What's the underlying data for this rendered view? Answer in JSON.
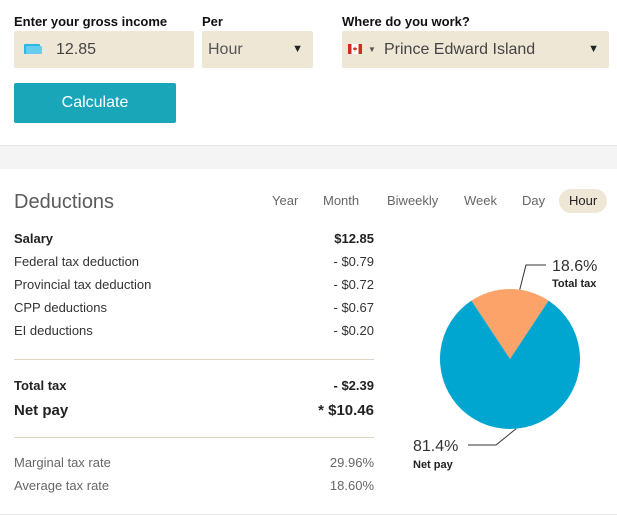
{
  "form": {
    "income_label": "Enter your gross income",
    "income_value": "12.85",
    "per_label": "Per",
    "per_value": "Hour",
    "where_label": "Where do you work?",
    "where_value": "Prince Edward Island",
    "calculate_label": "Calculate"
  },
  "deductions": {
    "title": "Deductions",
    "periods": [
      "Year",
      "Month",
      "Biweekly",
      "Week",
      "Day",
      "Hour"
    ],
    "active_period": "Hour",
    "salary": {
      "label": "Salary",
      "value": "$12.85"
    },
    "items": [
      {
        "label": "Federal tax deduction",
        "value": "- $0.79"
      },
      {
        "label": "Provincial tax deduction",
        "value": "- $0.72"
      },
      {
        "label": "CPP deductions",
        "value": "- $0.67"
      },
      {
        "label": "EI deductions",
        "value": "- $0.20"
      }
    ],
    "total_tax": {
      "label": "Total tax",
      "value": "- $2.39"
    },
    "net_pay": {
      "label": "Net pay",
      "value": "* $10.46"
    },
    "marginal": {
      "label": "Marginal tax rate",
      "value": "29.96%"
    },
    "average": {
      "label": "Average tax rate",
      "value": "18.60%"
    }
  },
  "chart_data": {
    "type": "pie",
    "slices": [
      {
        "label": "Total tax",
        "value": 18.6,
        "display": "18.6%",
        "color": "#fca36a"
      },
      {
        "label": "Net pay",
        "value": 81.4,
        "display": "81.4%",
        "color": "#00a6cf"
      }
    ]
  },
  "colors": {
    "accent": "#1aa6b9",
    "field_bg": "#efe7d6"
  }
}
